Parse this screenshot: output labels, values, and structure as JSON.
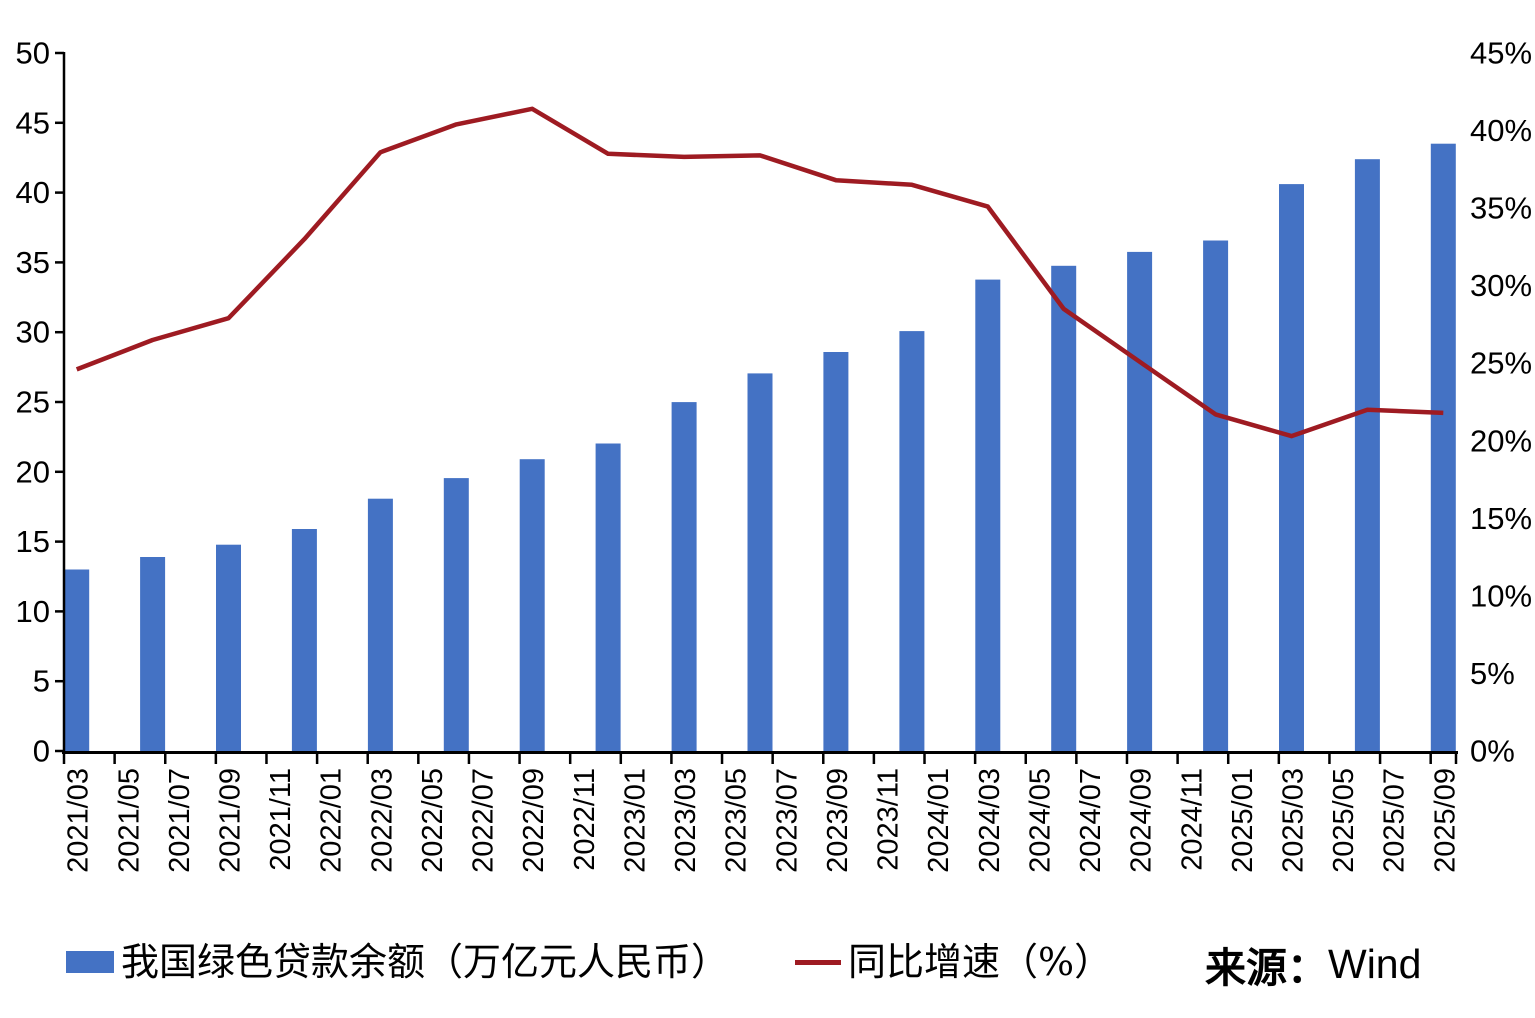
{
  "chart_data": {
    "type": "combo",
    "title": "",
    "grid": false,
    "legend_position": "bottom",
    "x_axis_months_total": 55,
    "x_tick_labels": [
      "2021/03",
      "2021/05",
      "2021/07",
      "2021/09",
      "2021/11",
      "2022/01",
      "2022/03",
      "2022/05",
      "2022/07",
      "2022/09",
      "2022/11",
      "2023/01",
      "2023/03",
      "2023/05",
      "2023/07",
      "2023/09",
      "2023/11",
      "2024/01",
      "2024/03",
      "2024/05",
      "2024/07",
      "2024/09",
      "2024/11",
      "2025/01",
      "2025/03",
      "2025/05",
      "2025/07",
      "2025/09"
    ],
    "categories_quarters": [
      "2021/03",
      "2021/06",
      "2021/09",
      "2021/12",
      "2022/03",
      "2022/06",
      "2022/09",
      "2022/12",
      "2023/03",
      "2023/06",
      "2023/09",
      "2023/12",
      "2024/03",
      "2024/06",
      "2024/09",
      "2024/12",
      "2025/03",
      "2025/06",
      "2025/09"
    ],
    "series": [
      {
        "name": "我国绿色贷款余额（万亿元人民币）",
        "type": "bar",
        "axis": "left",
        "color": "#4472C4",
        "values": [
          13.0,
          13.9,
          14.78,
          15.9,
          18.07,
          19.55,
          20.9,
          22.03,
          24.99,
          27.05,
          28.58,
          30.08,
          33.77,
          34.76,
          35.75,
          36.57,
          40.61,
          42.39,
          43.5
        ]
      },
      {
        "name": "同比增速（%）",
        "type": "line",
        "axis": "right",
        "color": "#9E1B22",
        "values": [
          24.6,
          26.5,
          27.9,
          33.0,
          38.6,
          40.4,
          41.4,
          38.5,
          38.3,
          38.4,
          36.8,
          36.5,
          35.1,
          28.5,
          25.1,
          21.7,
          20.3,
          22.0,
          21.8
        ]
      }
    ],
    "left_axis": {
      "min": 0,
      "max": 50,
      "step": 5,
      "tick_labels": [
        "0",
        "5",
        "10",
        "15",
        "20",
        "25",
        "30",
        "35",
        "40",
        "45",
        "50"
      ]
    },
    "right_axis": {
      "min": 0,
      "max": 45,
      "step": 5,
      "tick_labels": [
        "0%",
        "5%",
        "10%",
        "15%",
        "20%",
        "25%",
        "30%",
        "35%",
        "40%",
        "45%"
      ]
    }
  },
  "legend": {
    "items": [
      {
        "label": "我国绿色贷款余额（万亿元人民币）",
        "marker": "bar-swatch",
        "color": "#4472C4"
      },
      {
        "label": "同比增速（%）",
        "marker": "line-swatch",
        "color": "#9E1B22"
      }
    ]
  },
  "source": {
    "label": "来源：",
    "value": "Wind"
  },
  "colors": {
    "bar": "#4472C4",
    "line": "#9E1B22",
    "axis": "#000000",
    "text": "#000000",
    "background": "#FFFFFF"
  }
}
